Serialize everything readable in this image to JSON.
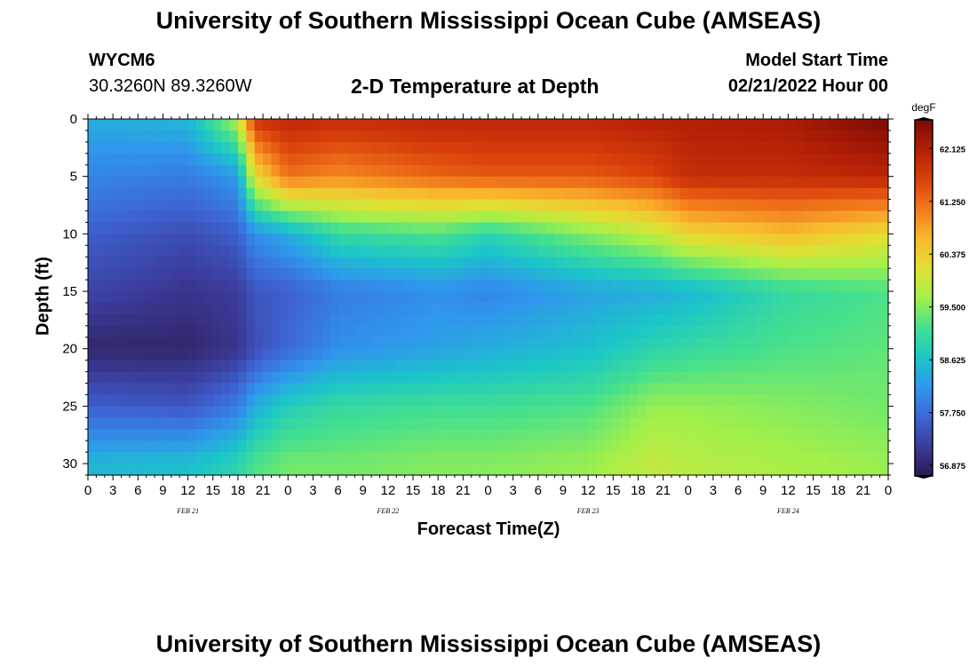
{
  "header": {
    "title": "University of Southern Mississippi Ocean Cube (AMSEAS)",
    "station": "WYCM6",
    "coords": "30.3260N  89.3260W",
    "plot_title": "2-D Temperature at Depth",
    "model_start_label": "Model Start Time",
    "model_start_value": "02/21/2022 Hour 00"
  },
  "footer": {
    "title": "University of Southern Mississippi Ocean Cube (AMSEAS)"
  },
  "chart_data": {
    "type": "heatmap",
    "title": "2-D Temperature at Depth",
    "xlabel": "Forecast Time(Z)",
    "ylabel": "Depth (ft)",
    "x_hours_range": [
      0,
      96
    ],
    "x_tick_labels": [
      "0",
      "3",
      "6",
      "9",
      "12",
      "15",
      "18",
      "21",
      "0",
      "3",
      "6",
      "9",
      "12",
      "15",
      "18",
      "21",
      "0",
      "3",
      "6",
      "9",
      "12",
      "15",
      "18",
      "21",
      "0",
      "3",
      "6",
      "9",
      "12",
      "15",
      "18",
      "21",
      "0"
    ],
    "day_labels": [
      {
        "label": "FEB 21",
        "hour": 12
      },
      {
        "label": "FEB 22",
        "hour": 36
      },
      {
        "label": "FEB 23",
        "hour": 60
      },
      {
        "label": "FEB 24",
        "hour": 84
      }
    ],
    "y_ticks": [
      0,
      5,
      10,
      15,
      20,
      25,
      30
    ],
    "y_range": [
      0,
      31
    ],
    "colorbar": {
      "units": "degF",
      "min": 56.7,
      "max": 62.6,
      "ticks": [
        "62.125",
        "61.250",
        "60.375",
        "59.500",
        "58.625",
        "57.750",
        "56.875"
      ],
      "stops": [
        "#2b1a4d",
        "#3b3b9a",
        "#3d67d6",
        "#2f97ec",
        "#1bc6c8",
        "#44e08e",
        "#a2f04a",
        "#e1e033",
        "#f9b92e",
        "#f27a1c",
        "#d9400b",
        "#b31f06",
        "#7a0b04"
      ]
    },
    "depths_ft": [
      0,
      5,
      10,
      15,
      20,
      25,
      30
    ],
    "temperature_profile_keyframes": [
      {
        "hour": 0,
        "temps_degF": [
          58.4,
          58.0,
          57.6,
          57.3,
          56.9,
          57.6,
          58.5
        ]
      },
      {
        "hour": 12,
        "temps_degF": [
          58.5,
          57.9,
          57.4,
          57.1,
          56.9,
          57.5,
          58.6
        ]
      },
      {
        "hour": 18,
        "temps_degF": [
          59.8,
          58.2,
          57.6,
          57.2,
          57.1,
          57.9,
          58.9
        ]
      },
      {
        "hour": 20,
        "temps_degF": [
          61.8,
          60.2,
          58.1,
          57.5,
          57.4,
          58.4,
          59.2
        ]
      },
      {
        "hour": 24,
        "temps_degF": [
          62.0,
          61.2,
          58.4,
          57.6,
          57.7,
          58.8,
          59.4
        ]
      },
      {
        "hour": 30,
        "temps_degF": [
          61.9,
          61.0,
          59.0,
          57.9,
          58.1,
          59.0,
          59.4
        ]
      },
      {
        "hour": 42,
        "temps_degF": [
          62.0,
          61.3,
          59.2,
          58.1,
          58.3,
          59.1,
          59.5
        ]
      },
      {
        "hour": 48,
        "temps_degF": [
          62.0,
          61.4,
          58.9,
          58.0,
          58.4,
          59.1,
          59.5
        ]
      },
      {
        "hour": 60,
        "temps_degF": [
          62.0,
          61.4,
          59.5,
          58.3,
          58.6,
          59.2,
          59.6
        ]
      },
      {
        "hour": 68,
        "temps_degF": [
          62.1,
          61.6,
          59.9,
          58.4,
          58.9,
          59.6,
          59.9
        ]
      },
      {
        "hour": 72,
        "temps_degF": [
          62.1,
          61.9,
          60.3,
          58.5,
          59.0,
          59.6,
          59.8
        ]
      },
      {
        "hour": 84,
        "temps_degF": [
          62.2,
          61.9,
          60.6,
          59.0,
          59.2,
          59.5,
          59.7
        ]
      },
      {
        "hour": 96,
        "temps_degF": [
          62.6,
          62.0,
          60.2,
          59.2,
          59.3,
          59.4,
          59.6
        ]
      }
    ]
  }
}
